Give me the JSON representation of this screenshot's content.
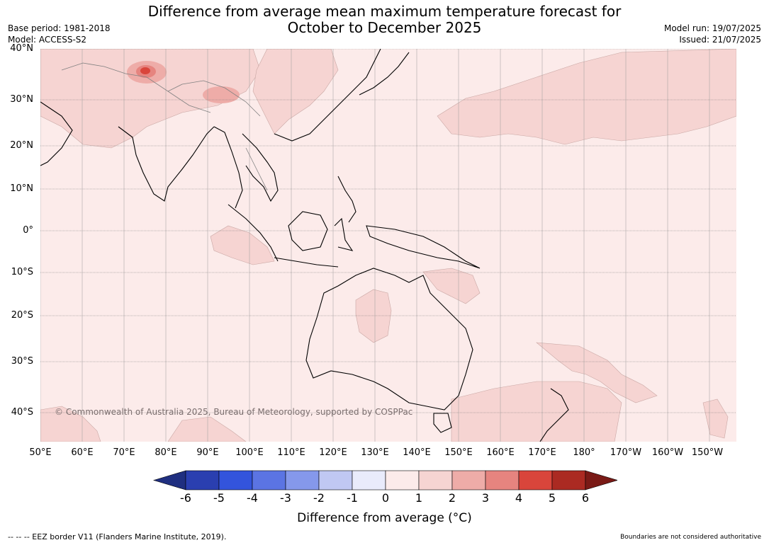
{
  "title_line1": "Difference from average mean maximum temperature forecast for",
  "title_line2": "October to December 2025",
  "base_period": "Base period: 1981-2018",
  "model": "Model: ACCESS-S2",
  "model_run": "Model run: 19/07/2025",
  "issued": "Issued: 21/07/2025",
  "lat_labels": [
    "40°N",
    "30°N",
    "20°N",
    "10°N",
    "0°",
    "10°S",
    "20°S",
    "30°S",
    "40°S"
  ],
  "lon_labels": [
    "50°E",
    "60°E",
    "70°E",
    "80°E",
    "90°E",
    "100°E",
    "110°E",
    "120°E",
    "130°E",
    "140°E",
    "150°E",
    "160°E",
    "170°E",
    "180°",
    "170°W",
    "160°W",
    "150°W"
  ],
  "copyright": "© Commonwealth of Australia 2025, Bureau of Meteorology, supported by COSPPac",
  "colorbar": {
    "labels": [
      "-6",
      "-5",
      "-4",
      "-3",
      "-2",
      "-1",
      "0",
      "1",
      "2",
      "3",
      "4",
      "5",
      "6"
    ],
    "colors": [
      "#1f2f80",
      "#2a3fb0",
      "#3354dc",
      "#5b74e3",
      "#8598eb",
      "#c0c8f3",
      "#e9ebfb",
      "#fcebea",
      "#f6d4d2",
      "#eeaca8",
      "#e6847f",
      "#d9453b",
      "#ab2a22",
      "#7a1a16"
    ],
    "title": "Difference from average (°C)"
  },
  "footer_left": "--  --  -- EEZ border V11 (Flanders Marine Institute, 2019).",
  "footer_right": "Boundaries are not considered authoritative"
}
